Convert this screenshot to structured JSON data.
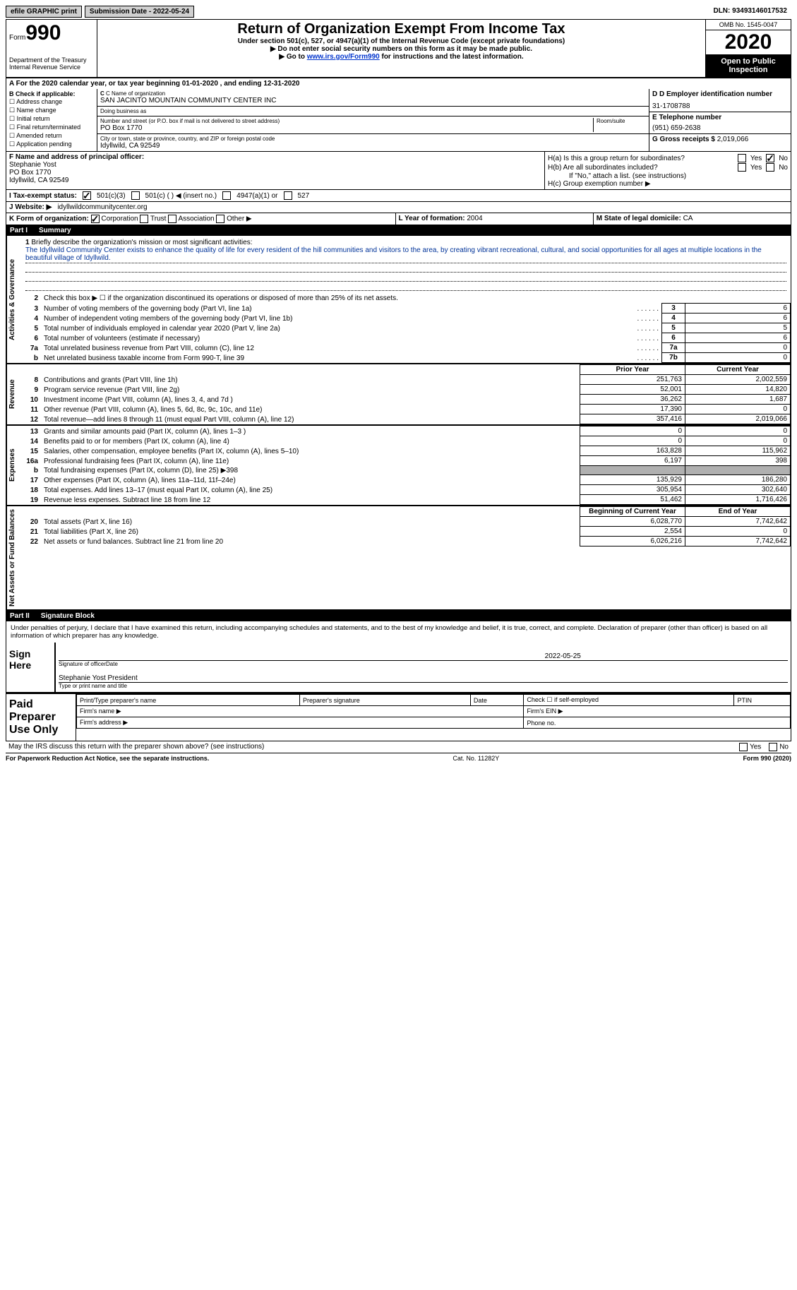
{
  "topbar": {
    "efile": "efile GRAPHIC print",
    "submission": "Submission Date - 2022-05-24",
    "dln": "DLN: 93493146017532"
  },
  "header": {
    "form_word": "Form",
    "form_num": "990",
    "dept": "Department of the Treasury Internal Revenue Service",
    "title": "Return of Organization Exempt From Income Tax",
    "subtitle": "Under section 501(c), 527, or 4947(a)(1) of the Internal Revenue Code (except private foundations)",
    "inst1": "▶ Do not enter social security numbers on this form as it may be made public.",
    "inst2_pre": "▶ Go to ",
    "inst2_link": "www.irs.gov/Form990",
    "inst2_post": " for instructions and the latest information.",
    "omb": "OMB No. 1545-0047",
    "year": "2020",
    "inspection": "Open to Public Inspection"
  },
  "rowA": "A For the 2020 calendar year, or tax year beginning 01-01-2020   , and ending 12-31-2020",
  "sectionB": {
    "label": "B Check if applicable:",
    "opts": [
      "Address change",
      "Name change",
      "Initial return",
      "Final return/terminated",
      "Amended return",
      "Application pending"
    ]
  },
  "sectionC": {
    "name_label": "C Name of organization",
    "name": "SAN JACINTO MOUNTAIN COMMUNITY CENTER INC",
    "dba_label": "Doing business as",
    "addr_label": "Number and street (or P.O. box if mail is not delivered to street address)",
    "room_label": "Room/suite",
    "addr": "PO Box 1770",
    "city_label": "City or town, state or province, country, and ZIP or foreign postal code",
    "city": "Idyllwild, CA  92549"
  },
  "sectionD": {
    "label": "D Employer identification number",
    "ein": "31-1708788",
    "phone_label": "E Telephone number",
    "phone": "(951) 659-2638",
    "gross_label": "G Gross receipts $",
    "gross": "2,019,066"
  },
  "sectionF": {
    "label": "F  Name and address of principal officer:",
    "name": "Stephanie Yost",
    "addr1": "PO Box 1770",
    "addr2": "Idyllwild, CA  92549"
  },
  "sectionH": {
    "ha": "H(a)  Is this a group return for subordinates?",
    "hb": "H(b)  Are all subordinates included?",
    "hb_note": "If \"No,\" attach a list. (see instructions)",
    "hc": "H(c)  Group exemption number ▶",
    "yes": "Yes",
    "no": "No"
  },
  "rowI": {
    "label": "I   Tax-exempt status:",
    "o1": "501(c)(3)",
    "o2": "501(c) (   ) ◀ (insert no.)",
    "o3": "4947(a)(1) or",
    "o4": "527"
  },
  "rowJ": {
    "label": "J   Website: ▶",
    "val": "idyllwildcommunitycenter.org"
  },
  "rowK": {
    "label": "K Form of organization:",
    "o1": "Corporation",
    "o2": "Trust",
    "o3": "Association",
    "o4": "Other ▶"
  },
  "rowL": {
    "label": "L Year of formation:",
    "val": "2004"
  },
  "rowM": {
    "label": "M State of legal domicile:",
    "val": "CA"
  },
  "part1": {
    "header_num": "Part I",
    "header_title": "Summary",
    "q1_label": "1",
    "q1_text": "Briefly describe the organization's mission or most significant activities:",
    "q1_mission": "The Idyllwild Community Center exists to enhance the quality of life for every resident of the hill communities and visitors to the area, by creating vibrant recreational, cultural, and social opportunities for all ages at multiple locations in the beautiful village of Idyllwild.",
    "q2": "Check this box ▶ ☐  if the organization discontinued its operations or disposed of more than 25% of its net assets.",
    "lines_gov": [
      {
        "num": "3",
        "desc": "Number of voting members of the governing body (Part VI, line 1a)",
        "box": "3",
        "val": "6"
      },
      {
        "num": "4",
        "desc": "Number of independent voting members of the governing body (Part VI, line 1b)",
        "box": "4",
        "val": "6"
      },
      {
        "num": "5",
        "desc": "Total number of individuals employed in calendar year 2020 (Part V, line 2a)",
        "box": "5",
        "val": "5"
      },
      {
        "num": "6",
        "desc": "Total number of volunteers (estimate if necessary)",
        "box": "6",
        "val": "6"
      },
      {
        "num": "7a",
        "desc": "Total unrelated business revenue from Part VIII, column (C), line 12",
        "box": "7a",
        "val": "0"
      },
      {
        "num": "b",
        "desc": "Net unrelated business taxable income from Form 990-T, line 39",
        "box": "7b",
        "val": "0"
      }
    ],
    "col_prior": "Prior Year",
    "col_current": "Current Year",
    "lines_rev": [
      {
        "num": "8",
        "desc": "Contributions and grants (Part VIII, line 1h)",
        "prior": "251,763",
        "curr": "2,002,559"
      },
      {
        "num": "9",
        "desc": "Program service revenue (Part VIII, line 2g)",
        "prior": "52,001",
        "curr": "14,820"
      },
      {
        "num": "10",
        "desc": "Investment income (Part VIII, column (A), lines 3, 4, and 7d )",
        "prior": "36,262",
        "curr": "1,687"
      },
      {
        "num": "11",
        "desc": "Other revenue (Part VIII, column (A), lines 5, 6d, 8c, 9c, 10c, and 11e)",
        "prior": "17,390",
        "curr": "0"
      },
      {
        "num": "12",
        "desc": "Total revenue—add lines 8 through 11 (must equal Part VIII, column (A), line 12)",
        "prior": "357,416",
        "curr": "2,019,066"
      }
    ],
    "lines_exp": [
      {
        "num": "13",
        "desc": "Grants and similar amounts paid (Part IX, column (A), lines 1–3 )",
        "prior": "0",
        "curr": "0"
      },
      {
        "num": "14",
        "desc": "Benefits paid to or for members (Part IX, column (A), line 4)",
        "prior": "0",
        "curr": "0"
      },
      {
        "num": "15",
        "desc": "Salaries, other compensation, employee benefits (Part IX, column (A), lines 5–10)",
        "prior": "163,828",
        "curr": "115,962"
      },
      {
        "num": "16a",
        "desc": "Professional fundraising fees (Part IX, column (A), line 11e)",
        "prior": "6,197",
        "curr": "398"
      },
      {
        "num": "b",
        "desc": "Total fundraising expenses (Part IX, column (D), line 25) ▶398",
        "prior": "",
        "curr": "",
        "shaded": true
      },
      {
        "num": "17",
        "desc": "Other expenses (Part IX, column (A), lines 11a–11d, 11f–24e)",
        "prior": "135,929",
        "curr": "186,280"
      },
      {
        "num": "18",
        "desc": "Total expenses. Add lines 13–17 (must equal Part IX, column (A), line 25)",
        "prior": "305,954",
        "curr": "302,640"
      },
      {
        "num": "19",
        "desc": "Revenue less expenses. Subtract line 18 from line 12",
        "prior": "51,462",
        "curr": "1,716,426"
      }
    ],
    "col_begin": "Beginning of Current Year",
    "col_end": "End of Year",
    "lines_net": [
      {
        "num": "20",
        "desc": "Total assets (Part X, line 16)",
        "prior": "6,028,770",
        "curr": "7,742,642"
      },
      {
        "num": "21",
        "desc": "Total liabilities (Part X, line 26)",
        "prior": "2,554",
        "curr": "0"
      },
      {
        "num": "22",
        "desc": "Net assets or fund balances. Subtract line 21 from line 20",
        "prior": "6,026,216",
        "curr": "7,742,642"
      }
    ],
    "vlabels": {
      "gov": "Activities & Governance",
      "rev": "Revenue",
      "exp": "Expenses",
      "net": "Net Assets or Fund Balances"
    }
  },
  "part2": {
    "header_num": "Part II",
    "header_title": "Signature Block",
    "declaration": "Under penalties of perjury, I declare that I have examined this return, including accompanying schedules and statements, and to the best of my knowledge and belief, it is true, correct, and complete. Declaration of preparer (other than officer) is based on all information of which preparer has any knowledge.",
    "sign_here": "Sign Here",
    "sig_officer": "Signature of officer",
    "sig_date": "Date",
    "sig_date_val": "2022-05-25",
    "sig_name": "Stephanie Yost  President",
    "sig_name_label": "Type or print name and title",
    "paid_label": "Paid Preparer Use Only",
    "p_name": "Print/Type preparer's name",
    "p_sig": "Preparer's signature",
    "p_date": "Date",
    "p_check": "Check ☐ if self-employed",
    "p_ptin": "PTIN",
    "firm_name": "Firm's name   ▶",
    "firm_ein": "Firm's EIN ▶",
    "firm_addr": "Firm's address ▶",
    "phone": "Phone no.",
    "discuss": "May the IRS discuss this return with the preparer shown above? (see instructions)",
    "yes": "Yes",
    "no": "No"
  },
  "footer": {
    "pra": "For Paperwork Reduction Act Notice, see the separate instructions.",
    "cat": "Cat. No. 11282Y",
    "form": "Form 990 (2020)"
  }
}
